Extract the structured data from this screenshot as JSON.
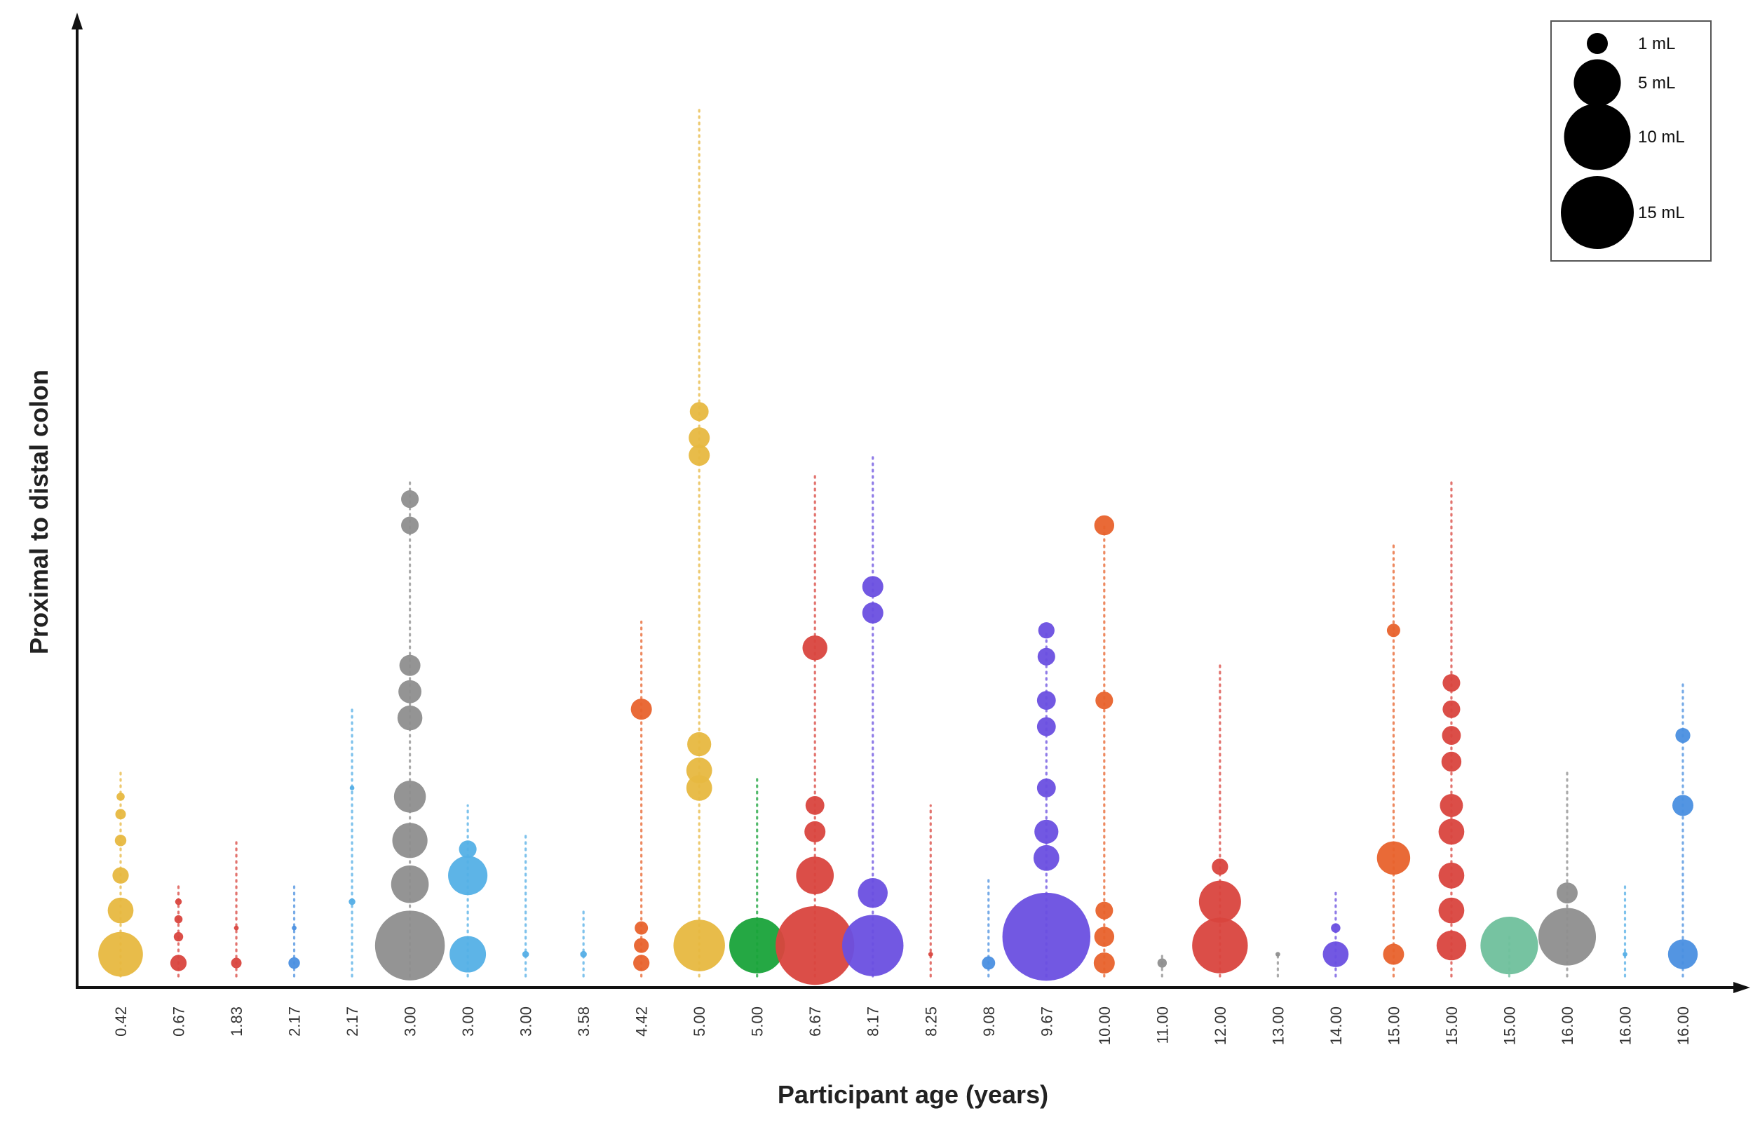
{
  "chart_data": {
    "type": "scatter",
    "subtype": "bubble",
    "title": "",
    "xlabel": "Participant age (years)",
    "ylabel": "Proximal to distal colon",
    "categories": [
      "0.42",
      "0.67",
      "1.83",
      "2.17",
      "2.17",
      "3.00",
      "3.00",
      "3.00",
      "3.58",
      "4.42",
      "5.00",
      "5.00",
      "6.67",
      "8.17",
      "8.25",
      "9.08",
      "9.67",
      "10.00",
      "11.00",
      "12.00",
      "13.00",
      "14.00",
      "15.00",
      "15.00",
      "15.00",
      "16.00",
      "16.00",
      "16.00"
    ],
    "legend": {
      "title": "",
      "placement": "top-right",
      "entries": [
        {
          "label": "1 mL",
          "volume": 1
        },
        {
          "label": "5 mL",
          "volume": 5
        },
        {
          "label": "10 mL",
          "volume": 10
        },
        {
          "label": "15 mL",
          "volume": 15
        }
      ]
    },
    "series": [
      {
        "name": "0.42",
        "color": "#e7b840",
        "top": 0.24,
        "points": [
          [
            0.03,
            4.5
          ],
          [
            0.08,
            1.5
          ],
          [
            0.12,
            0.6
          ],
          [
            0.16,
            0.3
          ],
          [
            0.19,
            0.25
          ],
          [
            0.21,
            0.15
          ]
        ]
      },
      {
        "name": "0.67",
        "color": "#d9453e",
        "top": 0.11,
        "points": [
          [
            0.02,
            0.6
          ],
          [
            0.05,
            0.2
          ],
          [
            0.07,
            0.15
          ],
          [
            0.09,
            0.1
          ]
        ]
      },
      {
        "name": "1.83",
        "color": "#d9453e",
        "top": 0.16,
        "points": [
          [
            0.02,
            0.25
          ],
          [
            0.06,
            0.05
          ]
        ]
      },
      {
        "name": "2.17",
        "color": "#4a8fe0",
        "top": 0.11,
        "points": [
          [
            0.02,
            0.3
          ],
          [
            0.06,
            0.05
          ]
        ]
      },
      {
        "name": "2.17",
        "color": "#54aee6",
        "top": 0.31,
        "points": [
          [
            0.09,
            0.1
          ],
          [
            0.22,
            0.05
          ]
        ]
      },
      {
        "name": "3.00",
        "color": "#8e8e8e",
        "top": 0.57,
        "points": [
          [
            0.04,
            11.0
          ],
          [
            0.11,
            3.2
          ],
          [
            0.16,
            2.8
          ],
          [
            0.21,
            2.3
          ],
          [
            0.3,
            1.4
          ],
          [
            0.33,
            1.2
          ],
          [
            0.36,
            1.0
          ],
          [
            0.52,
            0.7
          ],
          [
            0.55,
            0.7
          ]
        ]
      },
      {
        "name": "3.00",
        "color": "#54b0e6",
        "top": 0.2,
        "points": [
          [
            0.03,
            3.0
          ],
          [
            0.12,
            3.5
          ],
          [
            0.15,
            0.7
          ]
        ]
      },
      {
        "name": "3.00",
        "color": "#54aee6",
        "top": 0.17,
        "points": [
          [
            0.03,
            0.1
          ]
        ]
      },
      {
        "name": "3.58",
        "color": "#54aee6",
        "top": 0.08,
        "points": [
          [
            0.03,
            0.1
          ]
        ]
      },
      {
        "name": "4.42",
        "color": "#e8622c",
        "top": 0.41,
        "points": [
          [
            0.02,
            0.6
          ],
          [
            0.04,
            0.5
          ],
          [
            0.06,
            0.4
          ],
          [
            0.31,
            1.0
          ]
        ]
      },
      {
        "name": "5.00",
        "color": "#e7b840",
        "top": 1.0,
        "points": [
          [
            0.04,
            6.0
          ],
          [
            0.22,
            1.5
          ],
          [
            0.24,
            1.5
          ],
          [
            0.27,
            1.3
          ],
          [
            0.6,
            1.0
          ],
          [
            0.62,
            1.0
          ],
          [
            0.65,
            0.8
          ]
        ]
      },
      {
        "name": "5.00",
        "color": "#19a33a",
        "top": 0.23,
        "points": [
          [
            0.04,
            7.0
          ]
        ]
      },
      {
        "name": "6.67",
        "color": "#d9453e",
        "top": 0.58,
        "points": [
          [
            0.04,
            14.0
          ],
          [
            0.12,
            3.2
          ],
          [
            0.17,
            1.0
          ],
          [
            0.2,
            0.8
          ],
          [
            0.38,
            1.4
          ]
        ]
      },
      {
        "name": "8.17",
        "color": "#6a4fe0",
        "top": 0.6,
        "points": [
          [
            0.04,
            8.5
          ],
          [
            0.1,
            2.0
          ],
          [
            0.42,
            1.0
          ],
          [
            0.45,
            1.0
          ]
        ]
      },
      {
        "name": "8.25",
        "color": "#d9453e",
        "top": 0.2,
        "points": [
          [
            0.03,
            0.05
          ]
        ]
      },
      {
        "name": "9.08",
        "color": "#4a8fe0",
        "top": 0.12,
        "points": [
          [
            0.02,
            0.4
          ]
        ]
      },
      {
        "name": "9.67",
        "color": "#6a4fe0",
        "top": 0.4,
        "points": [
          [
            0.05,
            17.5
          ],
          [
            0.14,
            1.5
          ],
          [
            0.17,
            1.3
          ],
          [
            0.22,
            0.8
          ],
          [
            0.29,
            0.8
          ],
          [
            0.32,
            0.8
          ],
          [
            0.37,
            0.7
          ],
          [
            0.4,
            0.6
          ]
        ]
      },
      {
        "name": "10.00",
        "color": "#e8622c",
        "top": 0.52,
        "points": [
          [
            0.02,
            1.0
          ],
          [
            0.05,
            0.9
          ],
          [
            0.08,
            0.7
          ],
          [
            0.32,
            0.7
          ],
          [
            0.52,
            0.9
          ]
        ]
      },
      {
        "name": "11.00",
        "color": "#8e8e8e",
        "top": 0.03,
        "points": [
          [
            0.02,
            0.2
          ]
        ]
      },
      {
        "name": "12.00",
        "color": "#d9453e",
        "top": 0.36,
        "points": [
          [
            0.04,
            7.0
          ],
          [
            0.09,
            4.0
          ],
          [
            0.13,
            0.6
          ]
        ]
      },
      {
        "name": "13.00",
        "color": "#8e8e8e",
        "top": 0.03,
        "points": [
          [
            0.03,
            0.05
          ]
        ]
      },
      {
        "name": "14.00",
        "color": "#6a4fe0",
        "top": 0.1,
        "points": [
          [
            0.03,
            1.5
          ],
          [
            0.06,
            0.2
          ]
        ]
      },
      {
        "name": "15.00",
        "color": "#e8622c",
        "top": 0.5,
        "points": [
          [
            0.03,
            1.0
          ],
          [
            0.14,
            2.5
          ],
          [
            0.4,
            0.4
          ]
        ]
      },
      {
        "name": "15.00",
        "color": "#d9453e",
        "top": 0.57,
        "points": [
          [
            0.04,
            2.0
          ],
          [
            0.08,
            1.5
          ],
          [
            0.12,
            1.5
          ],
          [
            0.17,
            1.5
          ],
          [
            0.2,
            1.2
          ],
          [
            0.25,
            0.9
          ],
          [
            0.28,
            0.8
          ],
          [
            0.31,
            0.7
          ],
          [
            0.34,
            0.7
          ]
        ]
      },
      {
        "name": "15.00",
        "color": "#6fc09c",
        "top": 0.05,
        "points": [
          [
            0.04,
            7.5
          ]
        ]
      },
      {
        "name": "16.00",
        "color": "#8e8e8e",
        "top": 0.24,
        "points": [
          [
            0.05,
            7.5
          ],
          [
            0.1,
            1.0
          ]
        ]
      },
      {
        "name": "16.00",
        "color": "#54aee6",
        "top": 0.11,
        "points": [
          [
            0.03,
            0.05
          ]
        ]
      },
      {
        "name": "16.00",
        "color": "#4a8fe0",
        "top": 0.34,
        "points": [
          [
            0.03,
            2.0
          ],
          [
            0.2,
            1.0
          ],
          [
            0.28,
            0.5
          ]
        ]
      }
    ]
  }
}
